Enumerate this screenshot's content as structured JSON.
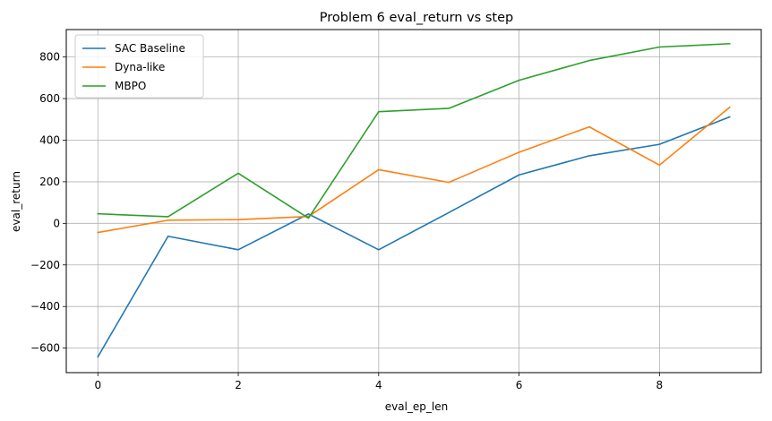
{
  "chart_data": {
    "type": "line",
    "title": "Problem 6 eval_return vs step",
    "xlabel": "eval_ep_len",
    "ylabel": "eval_return",
    "xlim": [
      -0.45,
      9.45
    ],
    "ylim": [
      -718,
      932
    ],
    "xticks": [
      0,
      2,
      4,
      6,
      8
    ],
    "yticks": [
      -600,
      -400,
      -200,
      0,
      200,
      400,
      600,
      800
    ],
    "grid": true,
    "legend_position": "upper-left",
    "x": [
      0,
      1,
      2,
      3,
      4,
      5,
      6,
      7,
      8,
      9
    ],
    "series": [
      {
        "name": "SAC Baseline",
        "color": "#1f77b4",
        "values": [
          -642,
          -62,
          -127,
          45,
          -127,
          52,
          233,
          325,
          380,
          512
        ]
      },
      {
        "name": "Dyna-like",
        "color": "#ff7f0e",
        "values": [
          -44,
          15,
          18,
          33,
          258,
          197,
          342,
          464,
          280,
          558
        ]
      },
      {
        "name": "MBPO",
        "color": "#2ca02c",
        "values": [
          46,
          32,
          241,
          25,
          537,
          553,
          688,
          783,
          848,
          864
        ]
      }
    ]
  }
}
